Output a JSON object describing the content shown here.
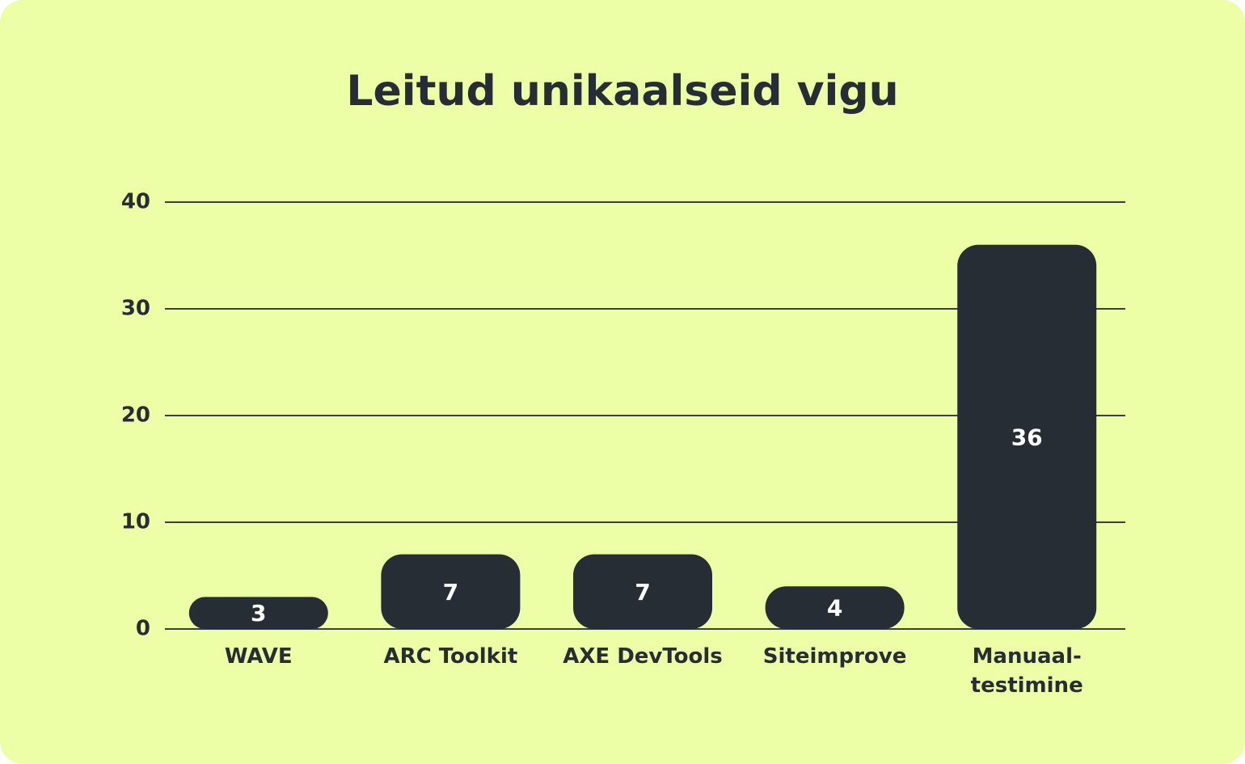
{
  "chart_data": {
    "type": "bar",
    "title": "Leitud unikaalseid vigu",
    "categories": [
      "WAVE",
      "ARC Toolkit",
      "AXE DevTools",
      "Siteimprove",
      "Manuaal-\ntestimine"
    ],
    "values": [
      3,
      7,
      7,
      4,
      36
    ],
    "color": "#262d35",
    "ylim": [
      0,
      40
    ],
    "yticks": [
      0,
      10,
      20,
      30,
      40
    ],
    "grid": true
  }
}
